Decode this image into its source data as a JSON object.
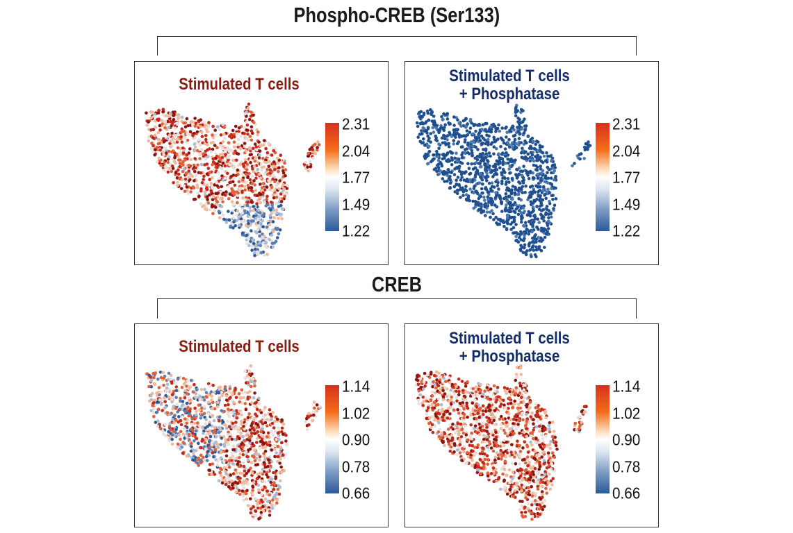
{
  "sections": [
    {
      "title": "Phospho-CREB (Ser133)",
      "panels": [
        {
          "title_lines": [
            "Stimulated T cells"
          ],
          "title_color": "#8b1a10",
          "ticks": [
            "2.31",
            "2.04",
            "1.77",
            "1.49",
            "1.22"
          ]
        },
        {
          "title_lines": [
            "Stimulated T cells",
            "+ Phosphatase"
          ],
          "title_color": "#142c6b",
          "ticks": [
            "2.31",
            "2.04",
            "1.77",
            "1.49",
            "1.22"
          ]
        }
      ]
    },
    {
      "title": "CREB",
      "panels": [
        {
          "title_lines": [
            "Stimulated T cells"
          ],
          "title_color": "#8b1a10",
          "ticks": [
            "1.14",
            "1.02",
            "0.90",
            "0.78",
            "0.66"
          ]
        },
        {
          "title_lines": [
            "Stimulated T cells",
            "+ Phosphatase"
          ],
          "title_color": "#142c6b",
          "ticks": [
            "1.14",
            "1.02",
            "0.90",
            "0.78",
            "0.66"
          ]
        }
      ]
    }
  ],
  "chart_data": [
    {
      "type": "scatter",
      "title": "Stimulated T cells",
      "group": "Phospho-CREB (Ser133)",
      "colorbar_range": [
        1.22,
        2.31
      ],
      "colormap": [
        "#2b5a9a",
        "#ffffff",
        "#d7301f"
      ],
      "dominant_level": "high"
    },
    {
      "type": "scatter",
      "title": "Stimulated T cells + Phosphatase",
      "group": "Phospho-CREB (Ser133)",
      "colorbar_range": [
        1.22,
        2.31
      ],
      "colormap": [
        "#2b5a9a",
        "#ffffff",
        "#d7301f"
      ],
      "dominant_level": "low"
    },
    {
      "type": "scatter",
      "title": "Stimulated T cells",
      "group": "CREB",
      "colorbar_range": [
        0.66,
        1.14
      ],
      "colormap": [
        "#2b5a9a",
        "#ffffff",
        "#d7301f"
      ],
      "dominant_level": "mixed"
    },
    {
      "type": "scatter",
      "title": "Stimulated T cells + Phosphatase",
      "group": "CREB",
      "colorbar_range": [
        0.66,
        1.14
      ],
      "colormap": [
        "#2b5a9a",
        "#ffffff",
        "#d7301f"
      ],
      "dominant_level": "high"
    }
  ]
}
